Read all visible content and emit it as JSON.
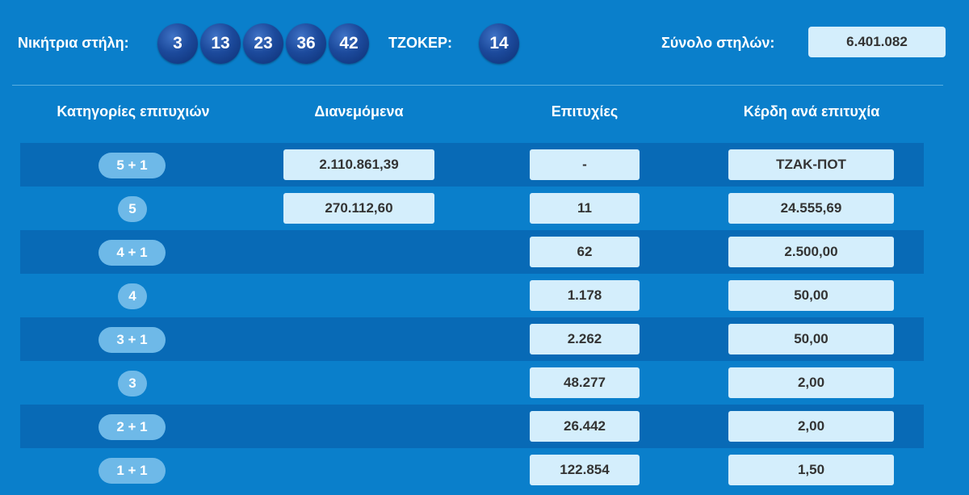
{
  "header": {
    "winning_label": "Νικήτρια στήλη:",
    "numbers": [
      "3",
      "13",
      "23",
      "36",
      "42"
    ],
    "joker_label": "ΤΖΟΚΕΡ:",
    "joker": "14",
    "total_label": "Σύνολο στηλών:",
    "total_value": "6.401.082",
    "ball_color": "#1c4a9c"
  },
  "columns": {
    "categories": "Κατηγορίες επιτυχιών",
    "distributed": "Διανεμόμενα",
    "winners": "Επιτυχίες",
    "prize": "Κέρδη ανά επιτυχία"
  },
  "rows": [
    {
      "category": "5 + 1",
      "distributed": "2.110.861,39",
      "winners": "-",
      "prize": "ΤΖΑΚ-ΠΟΤ"
    },
    {
      "category": "5",
      "distributed": "270.112,60",
      "winners": "11",
      "prize": "24.555,69"
    },
    {
      "category": "4 + 1",
      "distributed": "",
      "winners": "62",
      "prize": "2.500,00"
    },
    {
      "category": "4",
      "distributed": "",
      "winners": "1.178",
      "prize": "50,00"
    },
    {
      "category": "3 + 1",
      "distributed": "",
      "winners": "2.262",
      "prize": "50,00"
    },
    {
      "category": "3",
      "distributed": "",
      "winners": "48.277",
      "prize": "2,00"
    },
    {
      "category": "2 + 1",
      "distributed": "",
      "winners": "26.442",
      "prize": "2,00"
    },
    {
      "category": "1 + 1",
      "distributed": "",
      "winners": "122.854",
      "prize": "1,50"
    }
  ],
  "colors": {
    "background": "#0a7fcb",
    "row_stripe": "#086ab6",
    "cell": "#d4eefc",
    "pill": "#6eb9e8"
  }
}
